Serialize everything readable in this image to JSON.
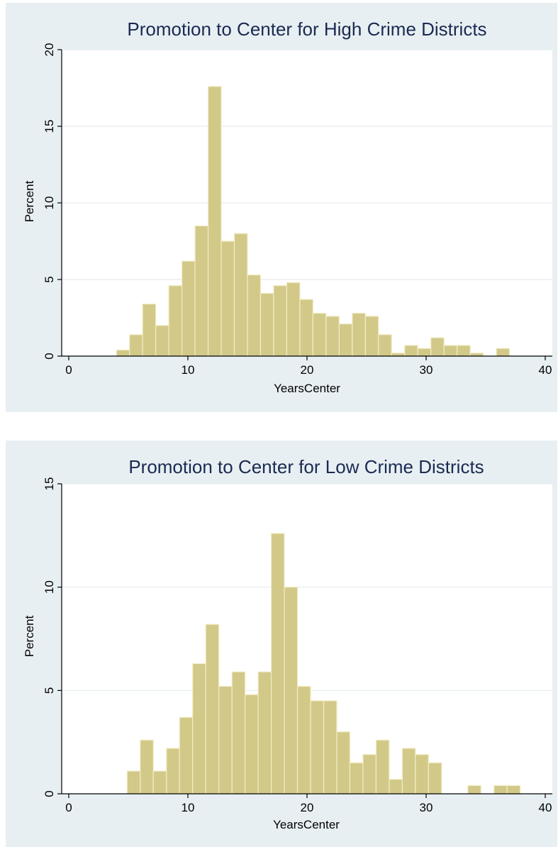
{
  "chart_data": [
    {
      "type": "bar",
      "title": "Promotion to Center for High Crime Districts",
      "xlabel": "YearsCenter",
      "ylabel": "Percent",
      "xlim": [
        0,
        40
      ],
      "ylim": [
        0,
        20
      ],
      "xticks": [
        0,
        10,
        20,
        30,
        40
      ],
      "yticks": [
        0,
        5,
        10,
        15,
        20
      ],
      "grid": true,
      "bin_width": 1.1,
      "bins": [
        {
          "start": 4.0,
          "value": 0.4
        },
        {
          "start": 5.1,
          "value": 1.4
        },
        {
          "start": 6.2,
          "value": 3.4
        },
        {
          "start": 7.3,
          "value": 2.0
        },
        {
          "start": 8.4,
          "value": 4.6
        },
        {
          "start": 9.5,
          "value": 6.2
        },
        {
          "start": 10.6,
          "value": 8.5
        },
        {
          "start": 11.7,
          "value": 17.6
        },
        {
          "start": 12.8,
          "value": 7.5
        },
        {
          "start": 13.9,
          "value": 8.0
        },
        {
          "start": 15.0,
          "value": 5.3
        },
        {
          "start": 16.1,
          "value": 4.1
        },
        {
          "start": 17.2,
          "value": 4.6
        },
        {
          "start": 18.3,
          "value": 4.8
        },
        {
          "start": 19.4,
          "value": 3.7
        },
        {
          "start": 20.5,
          "value": 2.8
        },
        {
          "start": 21.6,
          "value": 2.6
        },
        {
          "start": 22.7,
          "value": 2.1
        },
        {
          "start": 23.8,
          "value": 2.8
        },
        {
          "start": 24.9,
          "value": 2.6
        },
        {
          "start": 26.0,
          "value": 1.4
        },
        {
          "start": 27.1,
          "value": 0.2
        },
        {
          "start": 28.2,
          "value": 0.7
        },
        {
          "start": 29.3,
          "value": 0.5
        },
        {
          "start": 30.4,
          "value": 1.2
        },
        {
          "start": 31.5,
          "value": 0.7
        },
        {
          "start": 32.6,
          "value": 0.7
        },
        {
          "start": 33.7,
          "value": 0.2
        },
        {
          "start": 34.8,
          "value": 0.0
        },
        {
          "start": 35.9,
          "value": 0.5
        }
      ]
    },
    {
      "type": "bar",
      "title": "Promotion to Center for Low Crime Districts",
      "xlabel": "YearsCenter",
      "ylabel": "Percent",
      "xlim": [
        0,
        40
      ],
      "ylim": [
        0,
        15
      ],
      "xticks": [
        0,
        10,
        20,
        30,
        40
      ],
      "yticks": [
        0,
        5,
        10,
        15
      ],
      "grid": true,
      "bin_width": 1.1,
      "bins": [
        {
          "start": 4.9,
          "value": 1.1
        },
        {
          "start": 6.0,
          "value": 2.6
        },
        {
          "start": 7.1,
          "value": 1.1
        },
        {
          "start": 8.2,
          "value": 2.2
        },
        {
          "start": 9.3,
          "value": 3.7
        },
        {
          "start": 10.4,
          "value": 6.3
        },
        {
          "start": 11.5,
          "value": 8.2
        },
        {
          "start": 12.6,
          "value": 5.2
        },
        {
          "start": 13.7,
          "value": 5.9
        },
        {
          "start": 14.8,
          "value": 4.8
        },
        {
          "start": 15.9,
          "value": 5.9
        },
        {
          "start": 17.0,
          "value": 12.6
        },
        {
          "start": 18.1,
          "value": 10.0
        },
        {
          "start": 19.2,
          "value": 5.2
        },
        {
          "start": 20.3,
          "value": 4.5
        },
        {
          "start": 21.4,
          "value": 4.5
        },
        {
          "start": 22.5,
          "value": 3.0
        },
        {
          "start": 23.6,
          "value": 1.5
        },
        {
          "start": 24.7,
          "value": 1.9
        },
        {
          "start": 25.8,
          "value": 2.6
        },
        {
          "start": 26.9,
          "value": 0.7
        },
        {
          "start": 28.0,
          "value": 2.2
        },
        {
          "start": 29.1,
          "value": 1.9
        },
        {
          "start": 30.2,
          "value": 1.5
        },
        {
          "start": 31.3,
          "value": 0.0
        },
        {
          "start": 32.4,
          "value": 0.0
        },
        {
          "start": 33.5,
          "value": 0.4
        },
        {
          "start": 34.6,
          "value": 0.0
        },
        {
          "start": 35.7,
          "value": 0.4
        },
        {
          "start": 36.8,
          "value": 0.4
        }
      ]
    }
  ]
}
